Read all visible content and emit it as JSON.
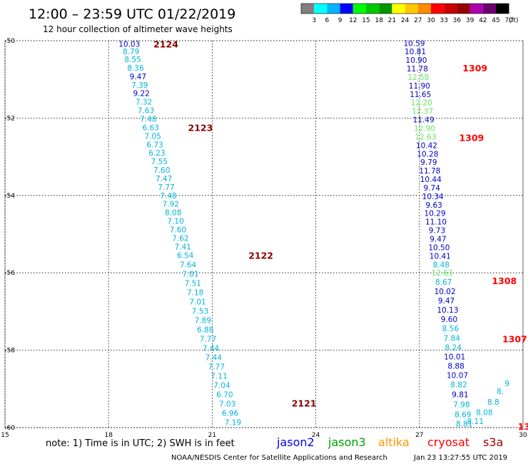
{
  "header": {
    "title": "12:00 – 23:59 UTC 01/22/2019",
    "subtitle": "12 hour collection of altimeter wave heights"
  },
  "colorbar": {
    "colors": [
      "#7f7f7f",
      "#00ffff",
      "#00b4ff",
      "#0000ff",
      "#00ff00",
      "#00c800",
      "#009600",
      "#ffff00",
      "#ffc800",
      "#ff8c00",
      "#ff0000",
      "#c80000",
      "#960000",
      "#aa00aa",
      "#6e006e",
      "#000000"
    ],
    "labels": [
      "3",
      "6",
      "9",
      "12",
      "15",
      "18",
      "21",
      "24",
      "27",
      "30",
      "33",
      "36",
      "39",
      "42",
      "45",
      "70"
    ],
    "unit": "(ft)"
  },
  "chart_data": {
    "type": "scatter",
    "xlim": [
      15,
      30
    ],
    "ylim": [
      -60,
      -50
    ],
    "x_ticks": [
      "15",
      "18",
      "21",
      "24",
      "27",
      "30"
    ],
    "y_ticks": [
      "-50",
      "-52",
      "-54",
      "-56",
      "-58",
      "-60"
    ],
    "point_colors": {
      "cyan": "#00b4dc",
      "blue": "#0000c8",
      "green": "#64e664"
    },
    "passes": [
      {
        "points": [
          {
            "x": 18.6,
            "y": -50.08,
            "t": "10.03",
            "c": "blue"
          },
          {
            "x": 18.65,
            "y": -50.28,
            "t": "8.79",
            "c": "cyan"
          },
          {
            "x": 18.7,
            "y": -50.48,
            "t": "8.55",
            "c": "cyan"
          },
          {
            "x": 18.78,
            "y": -50.7,
            "t": "8.36",
            "c": "cyan"
          },
          {
            "x": 18.85,
            "y": -50.92,
            "t": "9.47",
            "c": "blue"
          },
          {
            "x": 18.9,
            "y": -51.14,
            "t": "7.39",
            "c": "cyan"
          },
          {
            "x": 18.95,
            "y": -51.36,
            "t": "9.22",
            "c": "blue"
          },
          {
            "x": 19.02,
            "y": -51.58,
            "t": "7.32",
            "c": "cyan"
          },
          {
            "x": 19.08,
            "y": -51.8,
            "t": "7.63",
            "c": "cyan"
          },
          {
            "x": 19.15,
            "y": -52.02,
            "t": "7.48",
            "c": "cyan"
          },
          {
            "x": 19.22,
            "y": -52.24,
            "t": "6.63",
            "c": "cyan"
          },
          {
            "x": 19.28,
            "y": -52.46,
            "t": "7.05",
            "c": "cyan"
          },
          {
            "x": 19.34,
            "y": -52.68,
            "t": "6.73",
            "c": "cyan"
          },
          {
            "x": 19.4,
            "y": -52.9,
            "t": "6.23",
            "c": "cyan"
          },
          {
            "x": 19.47,
            "y": -53.12,
            "t": "7.55",
            "c": "cyan"
          },
          {
            "x": 19.54,
            "y": -53.34,
            "t": "7.60",
            "c": "cyan"
          },
          {
            "x": 19.6,
            "y": -53.56,
            "t": "7.47",
            "c": "cyan"
          },
          {
            "x": 19.67,
            "y": -53.78,
            "t": "7.77",
            "c": "cyan"
          },
          {
            "x": 19.73,
            "y": -54.0,
            "t": "7.48",
            "c": "cyan"
          },
          {
            "x": 19.8,
            "y": -54.22,
            "t": "7.92",
            "c": "cyan"
          },
          {
            "x": 19.87,
            "y": -54.44,
            "t": "8.08",
            "c": "cyan"
          },
          {
            "x": 19.94,
            "y": -54.66,
            "t": "7.10",
            "c": "cyan"
          },
          {
            "x": 20.01,
            "y": -54.88,
            "t": "7.60",
            "c": "cyan"
          },
          {
            "x": 20.08,
            "y": -55.1,
            "t": "7.62",
            "c": "cyan"
          },
          {
            "x": 20.15,
            "y": -55.32,
            "t": "7.41",
            "c": "cyan"
          },
          {
            "x": 20.22,
            "y": -55.54,
            "t": "6.54",
            "c": "cyan"
          },
          {
            "x": 20.3,
            "y": -55.78,
            "t": "7.64",
            "c": "cyan"
          },
          {
            "x": 20.37,
            "y": -56.02,
            "t": "7.01",
            "c": "cyan"
          },
          {
            "x": 20.44,
            "y": -56.26,
            "t": "7.51",
            "c": "cyan"
          },
          {
            "x": 20.51,
            "y": -56.5,
            "t": "7.18",
            "c": "cyan"
          },
          {
            "x": 20.58,
            "y": -56.74,
            "t": "7.01",
            "c": "cyan"
          },
          {
            "x": 20.65,
            "y": -56.98,
            "t": "7.53",
            "c": "cyan"
          },
          {
            "x": 20.73,
            "y": -57.22,
            "t": "7.89",
            "c": "cyan"
          },
          {
            "x": 20.8,
            "y": -57.46,
            "t": "6.88",
            "c": "cyan"
          },
          {
            "x": 20.88,
            "y": -57.7,
            "t": "7.77",
            "c": "cyan"
          },
          {
            "x": 20.96,
            "y": -57.94,
            "t": "7.44",
            "c": "cyan"
          },
          {
            "x": 21.04,
            "y": -58.18,
            "t": "7.44",
            "c": "cyan"
          },
          {
            "x": 21.12,
            "y": -58.42,
            "t": "7.77",
            "c": "cyan"
          },
          {
            "x": 21.2,
            "y": -58.66,
            "t": "7.11",
            "c": "cyan"
          },
          {
            "x": 21.28,
            "y": -58.9,
            "t": "7.04",
            "c": "cyan"
          },
          {
            "x": 21.36,
            "y": -59.14,
            "t": "6.70",
            "c": "cyan"
          },
          {
            "x": 21.44,
            "y": -59.38,
            "t": "7.03",
            "c": "cyan"
          },
          {
            "x": 21.52,
            "y": -59.62,
            "t": "6.96",
            "c": "cyan"
          },
          {
            "x": 21.6,
            "y": -59.86,
            "t": "7.19",
            "c": "cyan"
          }
        ],
        "labels": [
          {
            "x": 19.3,
            "y": -50.08,
            "t": "2124",
            "c": "#8b0000"
          },
          {
            "x": 20.3,
            "y": -52.24,
            "t": "2123",
            "c": "#8b0000"
          },
          {
            "x": 22.05,
            "y": -55.54,
            "t": "2122",
            "c": "#8b0000"
          },
          {
            "x": 23.3,
            "y": -59.36,
            "t": "2121",
            "c": "#8b0000"
          }
        ]
      },
      {
        "points": [
          {
            "x": 26.85,
            "y": -50.06,
            "t": "10.59",
            "c": "blue"
          },
          {
            "x": 26.88,
            "y": -50.28,
            "t": "10.81",
            "c": "blue"
          },
          {
            "x": 26.91,
            "y": -50.5,
            "t": "10.90",
            "c": "blue"
          },
          {
            "x": 26.94,
            "y": -50.72,
            "t": "11.78",
            "c": "blue"
          },
          {
            "x": 26.97,
            "y": -50.94,
            "t": "12.58",
            "c": "green"
          },
          {
            "x": 27.0,
            "y": -51.16,
            "t": "11.90",
            "c": "blue"
          },
          {
            "x": 27.03,
            "y": -51.38,
            "t": "11.65",
            "c": "blue"
          },
          {
            "x": 27.06,
            "y": -51.6,
            "t": "12.20",
            "c": "green"
          },
          {
            "x": 27.09,
            "y": -51.82,
            "t": "12.37",
            "c": "green"
          },
          {
            "x": 27.12,
            "y": -52.04,
            "t": "11.49",
            "c": "blue"
          },
          {
            "x": 27.15,
            "y": -52.26,
            "t": "12.90",
            "c": "green"
          },
          {
            "x": 27.18,
            "y": -52.48,
            "t": "12.63",
            "c": "green"
          },
          {
            "x": 27.21,
            "y": -52.7,
            "t": "10.42",
            "c": "blue"
          },
          {
            "x": 27.24,
            "y": -52.92,
            "t": "10.28",
            "c": "blue"
          },
          {
            "x": 27.27,
            "y": -53.14,
            "t": "9.79",
            "c": "blue"
          },
          {
            "x": 27.3,
            "y": -53.36,
            "t": "11.78",
            "c": "blue"
          },
          {
            "x": 27.33,
            "y": -53.58,
            "t": "10.44",
            "c": "blue"
          },
          {
            "x": 27.36,
            "y": -53.8,
            "t": "9.74",
            "c": "blue"
          },
          {
            "x": 27.39,
            "y": -54.02,
            "t": "10.34",
            "c": "blue"
          },
          {
            "x": 27.42,
            "y": -54.24,
            "t": "9.63",
            "c": "blue"
          },
          {
            "x": 27.45,
            "y": -54.46,
            "t": "10.29",
            "c": "blue"
          },
          {
            "x": 27.48,
            "y": -54.68,
            "t": "11.10",
            "c": "blue"
          },
          {
            "x": 27.51,
            "y": -54.9,
            "t": "9.73",
            "c": "blue"
          },
          {
            "x": 27.54,
            "y": -55.12,
            "t": "9.47",
            "c": "blue"
          },
          {
            "x": 27.57,
            "y": -55.34,
            "t": "10.50",
            "c": "blue"
          },
          {
            "x": 27.6,
            "y": -55.56,
            "t": "10.41",
            "c": "blue"
          },
          {
            "x": 27.63,
            "y": -55.78,
            "t": "8.48",
            "c": "cyan"
          },
          {
            "x": 27.66,
            "y": -56.0,
            "t": "12.63",
            "c": "green"
          },
          {
            "x": 27.7,
            "y": -56.24,
            "t": "8.67",
            "c": "cyan"
          },
          {
            "x": 27.74,
            "y": -56.48,
            "t": "10.02",
            "c": "blue"
          },
          {
            "x": 27.78,
            "y": -56.72,
            "t": "9.47",
            "c": "blue"
          },
          {
            "x": 27.82,
            "y": -56.96,
            "t": "10.13",
            "c": "blue"
          },
          {
            "x": 27.86,
            "y": -57.2,
            "t": "9.60",
            "c": "blue"
          },
          {
            "x": 27.9,
            "y": -57.44,
            "t": "8.56",
            "c": "cyan"
          },
          {
            "x": 27.94,
            "y": -57.68,
            "t": "7.84",
            "c": "cyan"
          },
          {
            "x": 27.98,
            "y": -57.92,
            "t": "8.24",
            "c": "cyan"
          },
          {
            "x": 28.02,
            "y": -58.16,
            "t": "10.01",
            "c": "blue"
          },
          {
            "x": 28.06,
            "y": -58.4,
            "t": "8.88",
            "c": "blue"
          },
          {
            "x": 28.1,
            "y": -58.64,
            "t": "10.07",
            "c": "blue"
          },
          {
            "x": 28.14,
            "y": -58.88,
            "t": "8.82",
            "c": "cyan"
          },
          {
            "x": 28.18,
            "y": -59.14,
            "t": "9.81",
            "c": "blue"
          },
          {
            "x": 28.22,
            "y": -59.4,
            "t": "7.98",
            "c": "cyan"
          },
          {
            "x": 28.26,
            "y": -59.66,
            "t": "8.69",
            "c": "cyan"
          },
          {
            "x": 28.3,
            "y": -59.9,
            "t": "8.81",
            "c": "cyan"
          },
          {
            "x": 28.62,
            "y": -59.83,
            "t": "8.11",
            "c": "cyan"
          },
          {
            "x": 28.88,
            "y": -59.6,
            "t": "8.08",
            "c": "cyan"
          },
          {
            "x": 29.14,
            "y": -59.34,
            "t": "8.8",
            "c": "cyan"
          },
          {
            "x": 29.34,
            "y": -59.06,
            "t": "8.",
            "c": "cyan"
          },
          {
            "x": 29.54,
            "y": -58.86,
            "t": "9",
            "c": "cyan"
          }
        ],
        "labels": [
          {
            "x": 28.25,
            "y": -50.7,
            "t": "1309",
            "c": "#ff0000"
          },
          {
            "x": 28.15,
            "y": -52.5,
            "t": "1309",
            "c": "#ff0000"
          },
          {
            "x": 29.1,
            "y": -56.2,
            "t": "1308",
            "c": "#ff0000"
          },
          {
            "x": 29.4,
            "y": -57.7,
            "t": "1307",
            "c": "#ff0000"
          },
          {
            "x": 29.85,
            "y": -59.96,
            "t": "13",
            "c": "#ff0000"
          }
        ]
      }
    ]
  },
  "footer": {
    "note": "note: 1) Time is in UTC; 2) SWH is in feet",
    "legend": [
      {
        "name": "jason2",
        "color": "#0000ff"
      },
      {
        "name": "jason3",
        "color": "#00a000"
      },
      {
        "name": "altika",
        "color": "#ff9600"
      },
      {
        "name": "cryosat",
        "color": "#ff0000"
      },
      {
        "name": "s3a",
        "color": "#a00000"
      }
    ],
    "credit": "NOAA/NESDIS Center for Satellite Applications and Research",
    "timestamp": "Jan 23 13:27:55 UTC 2019"
  }
}
